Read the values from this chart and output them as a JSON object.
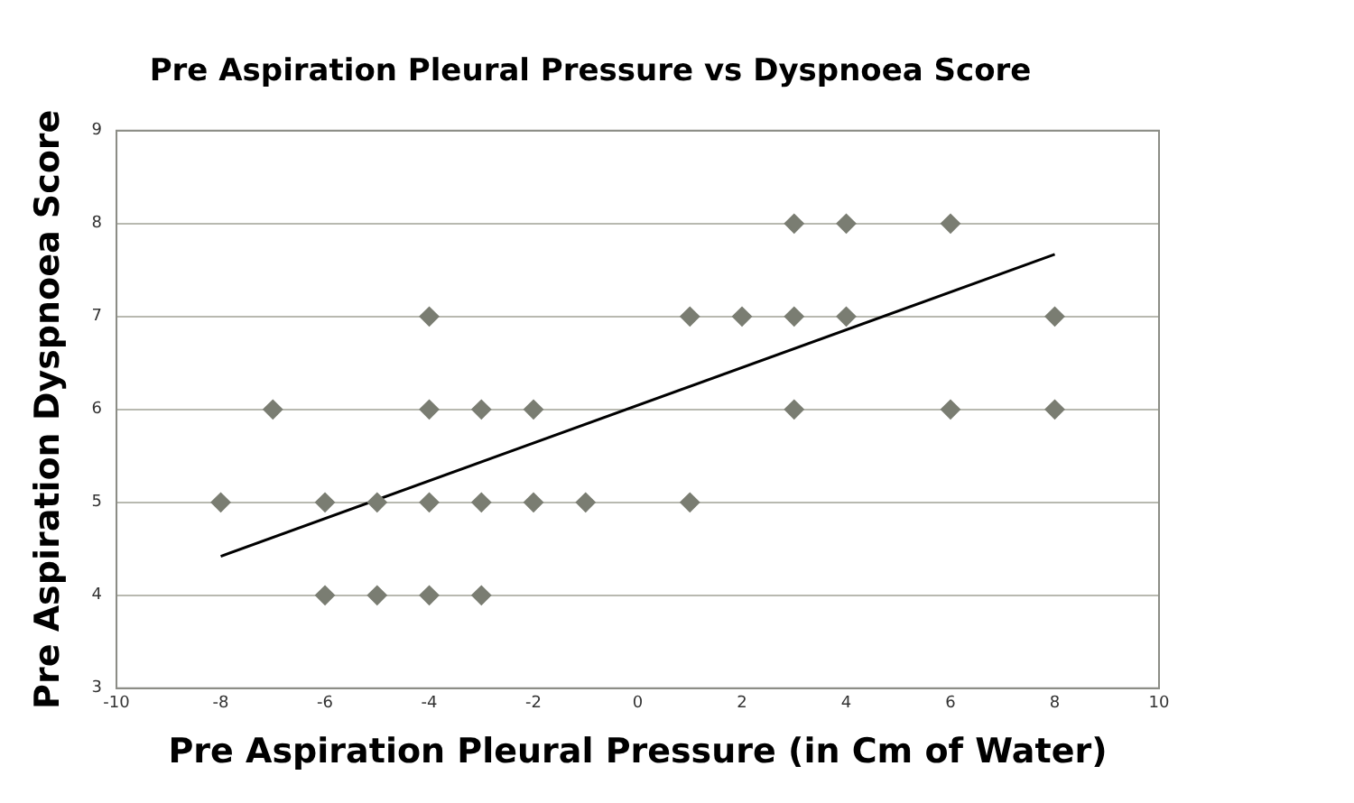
{
  "chart_data": {
    "type": "scatter",
    "title": "Pre Aspiration Pleural Pressure vs Dyspnoea Score",
    "xlabel": "Pre Aspiration Pleural Pressure (in Cm of Water)",
    "ylabel": "Pre Aspiration Dyspnoea Score",
    "series": [
      {
        "type": "scatter",
        "marker": "diamond",
        "color": "#7a7d72",
        "x": [
          3,
          4,
          6,
          -4,
          1,
          2,
          3,
          4,
          8,
          -7,
          -4,
          -3,
          -2,
          3,
          6,
          8,
          -8,
          -6,
          -5,
          -4,
          -3,
          -2,
          -1,
          1,
          -6,
          -5,
          -4,
          -3
        ],
        "values": [
          8,
          8,
          8,
          7,
          7,
          7,
          7,
          7,
          7,
          6,
          6,
          6,
          6,
          6,
          6,
          6,
          5,
          5,
          5,
          5,
          5,
          5,
          5,
          5,
          4,
          4,
          4,
          4
        ]
      },
      {
        "type": "line",
        "marker": "none",
        "color": "#000000",
        "x": [
          -8,
          8
        ],
        "values": [
          4.42,
          7.67
        ]
      }
    ],
    "xlim": [
      -10,
      10
    ],
    "xticks": [
      -10,
      -8,
      -6,
      -4,
      -2,
      0,
      2,
      4,
      6,
      8,
      10
    ],
    "ylim": [
      3,
      9
    ],
    "yticks": [
      3,
      4,
      5,
      6,
      7,
      8,
      9
    ],
    "grid": "y",
    "legend": false
  }
}
